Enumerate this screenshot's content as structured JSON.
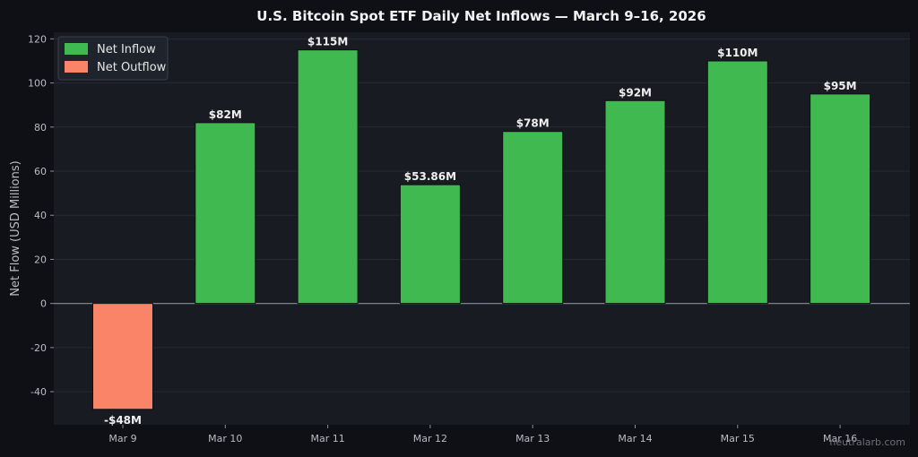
{
  "chart_data": {
    "type": "bar",
    "title": "U.S. Bitcoin Spot ETF Daily Net Inflows — March 9–16, 2026",
    "ylabel": "Net Flow (USD Millions)",
    "xlabel": "",
    "categories": [
      "Mar 9",
      "Mar 10",
      "Mar 11",
      "Mar 12",
      "Mar 13",
      "Mar 14",
      "Mar 15",
      "Mar 16"
    ],
    "values": [
      -48,
      82,
      115,
      53.86,
      78,
      92,
      110,
      95
    ],
    "value_labels": [
      "-$48M",
      "$82M",
      "$115M",
      "$53.86M",
      "$78M",
      "$92M",
      "$110M",
      "$95M"
    ],
    "ylim": [
      -55,
      123
    ],
    "yticks": [
      -40,
      -20,
      0,
      20,
      40,
      60,
      80,
      100,
      120
    ],
    "grid": true,
    "legend": {
      "placement": "top-left",
      "entries": [
        {
          "label": "Net Inflow",
          "color": "#3fb950"
        },
        {
          "label": "Net Outflow",
          "color": "#fa8467"
        }
      ]
    },
    "colors": {
      "inflow": "#3fb950",
      "outflow": "#fa8467",
      "plot_bg": "#181b22",
      "page_bg": "#0e1016",
      "grid": "#262a33",
      "zero_line": "#8a8f99"
    }
  },
  "watermark": "neutralarb.com"
}
